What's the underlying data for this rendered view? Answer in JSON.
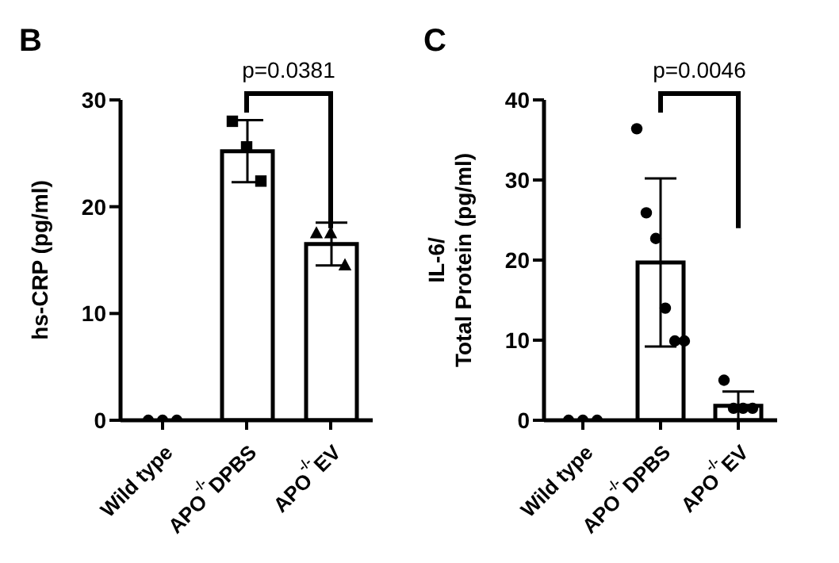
{
  "chart_data": [
    {
      "type": "bar",
      "title": "B",
      "ylabel": "hs-CRP  (pg/ml)",
      "categories": [
        "Wild type",
        "APO$^{-/-}$DPBS",
        "APO$^{-/-}$EV"
      ],
      "ylim": [
        0,
        30
      ],
      "yticks": [
        0,
        10,
        20,
        30
      ],
      "annotations": [
        "p=0.0381"
      ],
      "series": [
        {
          "color": "#ffffff",
          "values": [
            0,
            25.2,
            16.5
          ],
          "errors": [
            null,
            2.9,
            2
          ]
        },
        {
          "type": "scatter",
          "color": "#000000",
          "marker": "circle",
          "x": [
            "Wild type",
            "Wild type",
            "Wild type"
          ],
          "values": [
            0,
            0,
            0
          ]
        },
        {
          "type": "scatter",
          "color": "#000000",
          "marker": "square",
          "x": [
            "APO$^{-/-}$DPBS",
            "APO$^{-/-}$DPBS",
            "APO$^{-/-}$DPBS"
          ],
          "values": [
            28,
            25.6,
            22.4
          ]
        },
        {
          "type": "scatter",
          "color": "#000000",
          "marker": "triangle",
          "x": [
            "APO$^{-/-}$EV",
            "APO$^{-/-}$EV",
            "APO$^{-/-}$EV"
          ],
          "values": [
            17.5,
            17.5,
            14.5
          ]
        }
      ]
    },
    {
      "type": "bar",
      "title": "C",
      "ylabel": "IL-6/\nTotal Protein (pg/ml)",
      "categories": [
        "Wild type",
        "APO$^{-/-}$DPBS",
        "APO$^{-/-}$EV"
      ],
      "ylim": [
        0,
        40
      ],
      "yticks": [
        0,
        10,
        20,
        30,
        40
      ],
      "annotations": [
        "p=0.0046"
      ],
      "series": [
        {
          "color": "#ffffff",
          "values": [
            0,
            19.7,
            1.8
          ],
          "errors": [
            null,
            10.5,
            1.8
          ]
        },
        {
          "type": "scatter",
          "color": "#000000",
          "marker": "circle",
          "x": [
            "Wild type",
            "Wild type",
            "Wild type"
          ],
          "values": [
            0,
            0,
            0
          ]
        },
        {
          "type": "scatter",
          "color": "#000000",
          "marker": "circle",
          "x": [
            "APO$^{-/-}$DPBS",
            "APO$^{-/-}$DPBS",
            "APO$^{-/-}$DPBS",
            "APO$^{-/-}$DPBS",
            "APO$^{-/-}$DPBS",
            "APO$^{-/-}$DPBS"
          ],
          "values": [
            36.4,
            25.9,
            22.7,
            14,
            9.9,
            9.9
          ]
        },
        {
          "type": "scatter",
          "color": "#000000",
          "marker": "circle",
          "x": [
            "APO$^{-/-}$EV",
            "APO$^{-/-}$EV",
            "APO$^{-/-}$EV",
            "APO$^{-/-}$EV"
          ],
          "values": [
            5,
            1.5,
            1.5,
            1.5
          ]
        }
      ]
    }
  ]
}
